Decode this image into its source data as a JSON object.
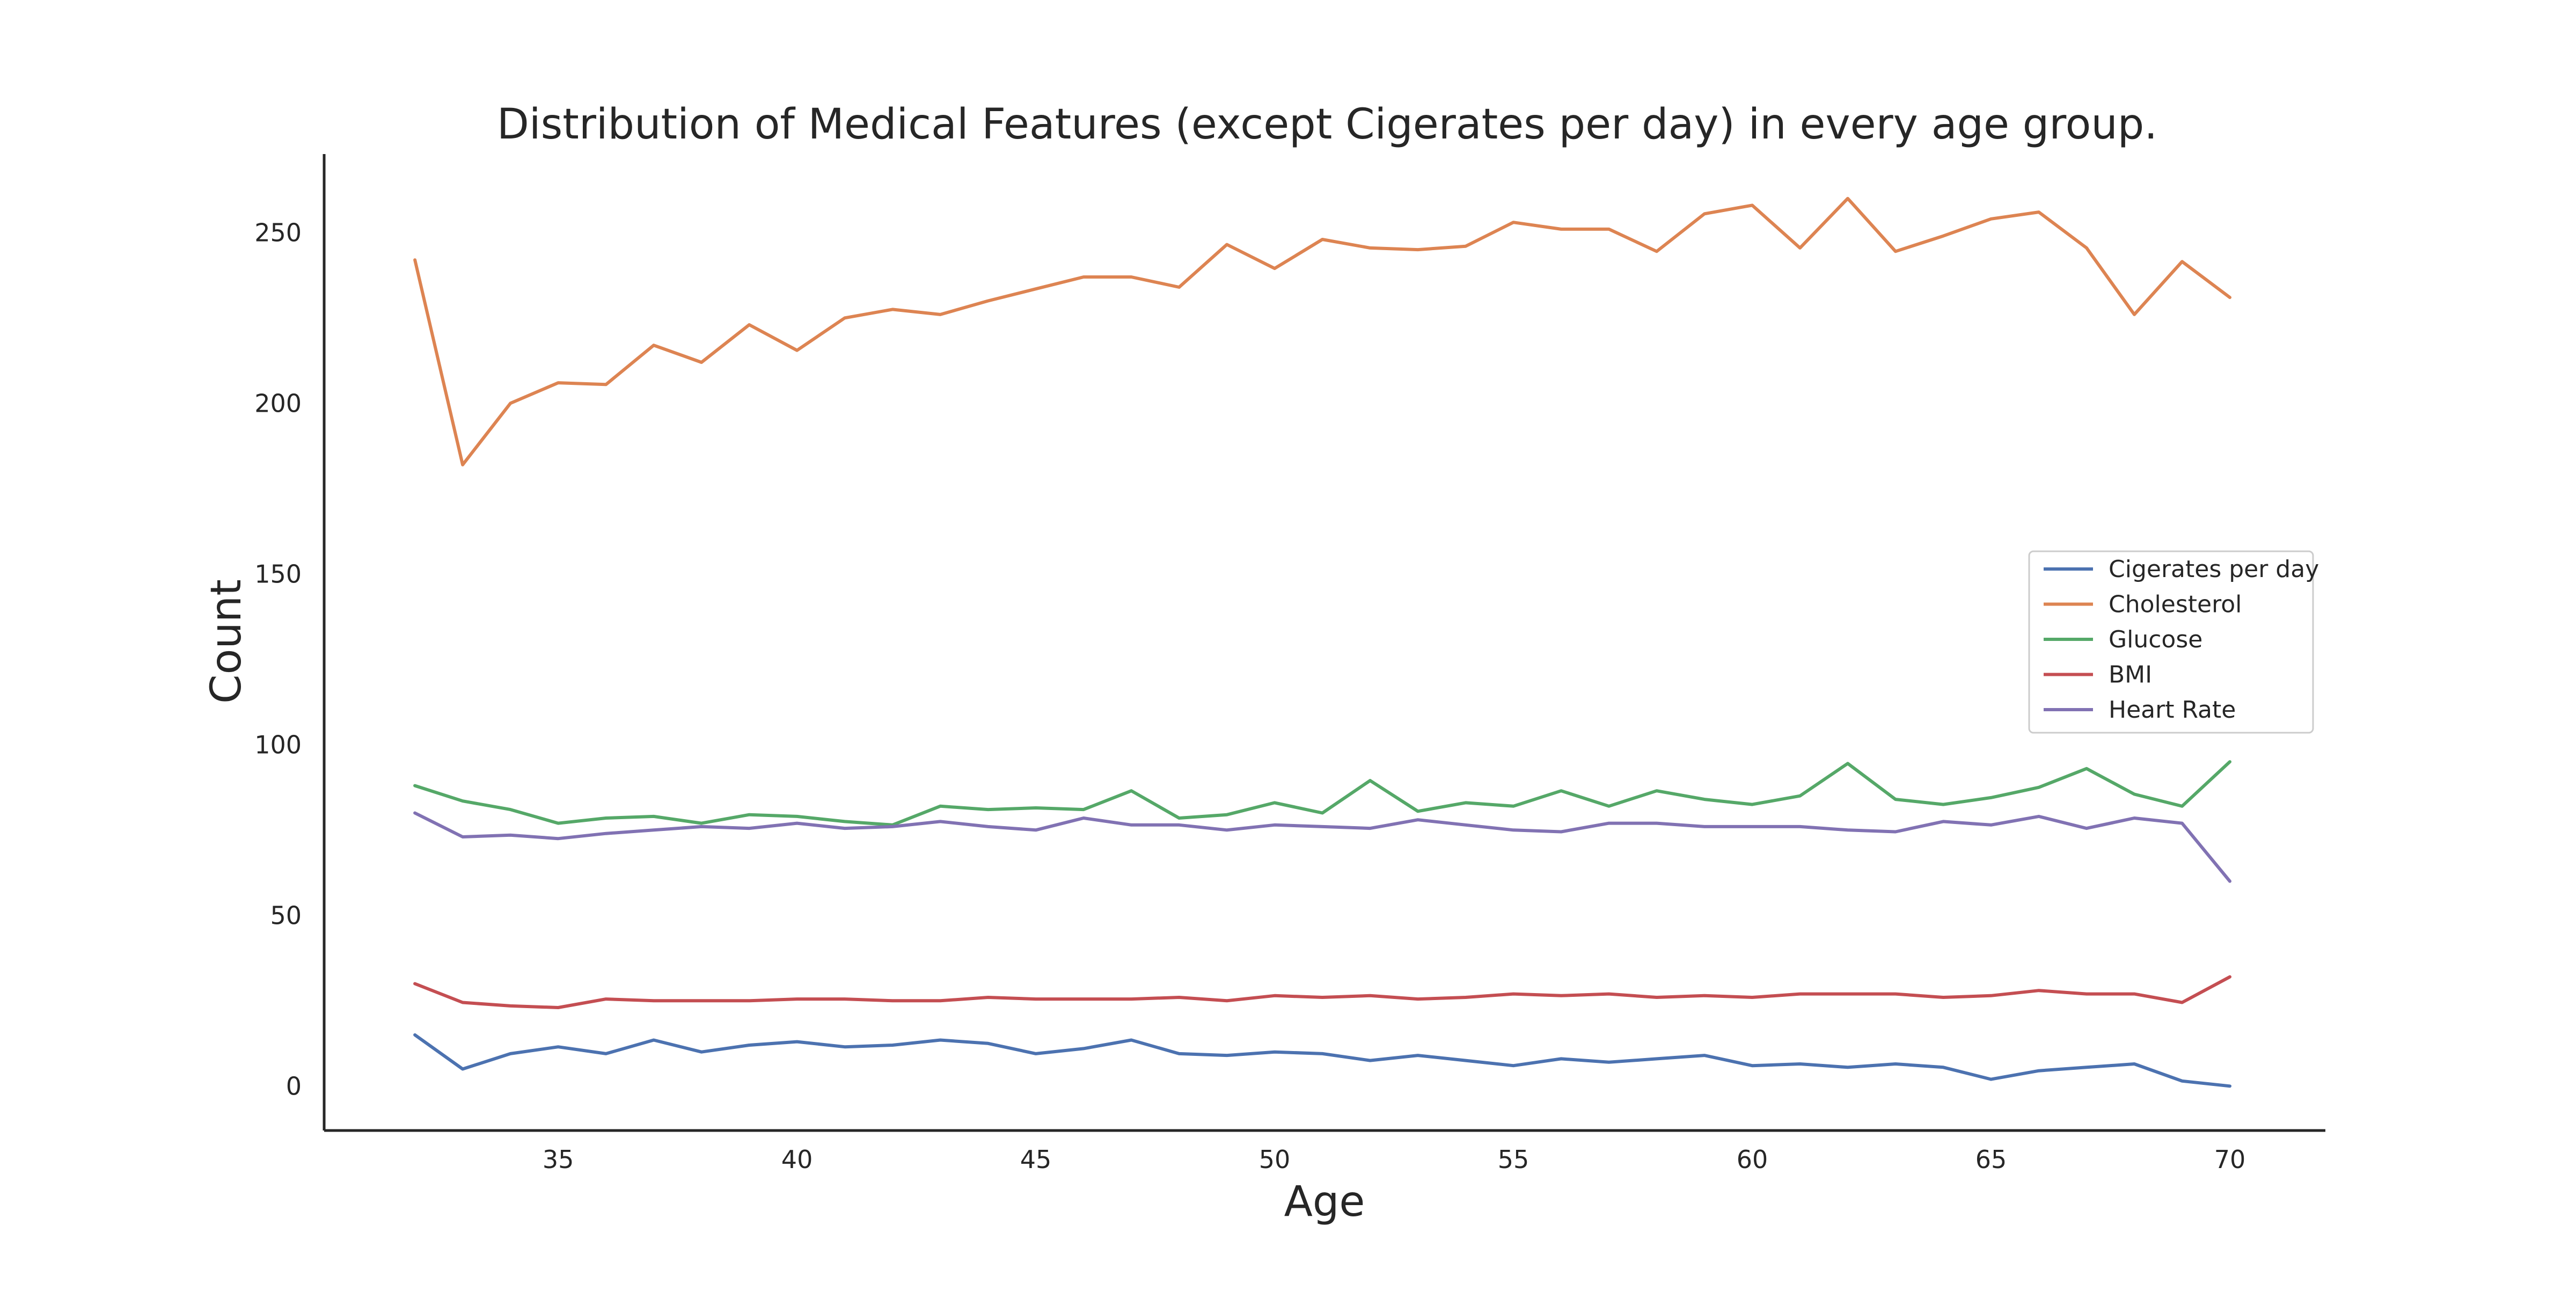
{
  "chart_data": {
    "type": "line",
    "title": "Distribution of Medical Features (except Cigerates per day) in every age group.",
    "xlabel": "Age",
    "ylabel": "Count",
    "xlim": [
      30.1,
      72.0
    ],
    "ylim": [
      -13,
      273
    ],
    "xticks": [
      35,
      40,
      45,
      50,
      55,
      60,
      65,
      70
    ],
    "yticks": [
      0,
      50,
      100,
      150,
      200,
      250
    ],
    "grid": false,
    "legend_position": "center-right",
    "x": [
      32,
      33,
      34,
      35,
      36,
      37,
      38,
      39,
      40,
      41,
      42,
      43,
      44,
      45,
      46,
      47,
      48,
      49,
      50,
      51,
      52,
      53,
      54,
      55,
      56,
      57,
      58,
      59,
      60,
      61,
      62,
      63,
      64,
      65,
      66,
      67,
      68,
      69,
      70
    ],
    "series": [
      {
        "name": "Cigerates per day",
        "color": "#4c72b0",
        "values": [
          15,
          5,
          9.5,
          11.5,
          9.5,
          13.5,
          10,
          12,
          13,
          11.5,
          12,
          13.5,
          12.5,
          9.5,
          11,
          13.5,
          9.5,
          9,
          10,
          9.5,
          7.5,
          9,
          7.5,
          6,
          8,
          7,
          8,
          9,
          6,
          6.5,
          5.5,
          6.5,
          5.5,
          2,
          4.5,
          5.5,
          6.5,
          1.5,
          0
        ]
      },
      {
        "name": "Cholesterol",
        "color": "#dd8452",
        "values": [
          242,
          182,
          200,
          206,
          205.5,
          217,
          212,
          223,
          215.5,
          225,
          227.5,
          226,
          230,
          233.5,
          237,
          237,
          234,
          246.5,
          239.5,
          248,
          245.5,
          245,
          246,
          253,
          251,
          251,
          244.5,
          255.5,
          258,
          245.5,
          260,
          244.5,
          249,
          254,
          256,
          245.5,
          226,
          241.5,
          231
        ]
      },
      {
        "name": "Glucose",
        "color": "#55a868",
        "values": [
          88,
          83.5,
          81,
          77,
          78.5,
          79,
          77,
          79.5,
          79,
          77.5,
          76.5,
          82,
          81,
          81.5,
          81,
          86.5,
          78.5,
          79.5,
          83,
          80,
          89.5,
          80.5,
          83,
          82,
          86.5,
          82,
          86.5,
          84,
          82.5,
          85,
          94.5,
          84,
          82.5,
          84.5,
          87.5,
          93,
          85.5,
          82,
          95
        ]
      },
      {
        "name": "BMI",
        "color": "#c44e52",
        "values": [
          30,
          24.5,
          23.5,
          23,
          25.5,
          25,
          25,
          25,
          25.5,
          25.5,
          25,
          25,
          26,
          25.5,
          25.5,
          25.5,
          26,
          25,
          26.5,
          26,
          26.5,
          25.5,
          26,
          27,
          26.5,
          27,
          26,
          26.5,
          26,
          27,
          27,
          27,
          26,
          26.5,
          28,
          27,
          27,
          24.5,
          32
        ]
      },
      {
        "name": "Heart Rate",
        "color": "#8172b3",
        "values": [
          80,
          73,
          73.5,
          72.5,
          74,
          75,
          76,
          75.5,
          77,
          75.5,
          76,
          77.5,
          76,
          75,
          78.5,
          76.5,
          76.5,
          75,
          76.5,
          76,
          75.5,
          78,
          76.5,
          75,
          74.5,
          77,
          77,
          76,
          76,
          76,
          75,
          74.5,
          77.5,
          76.5,
          79,
          75.5,
          78.5,
          77,
          60
        ]
      }
    ]
  }
}
